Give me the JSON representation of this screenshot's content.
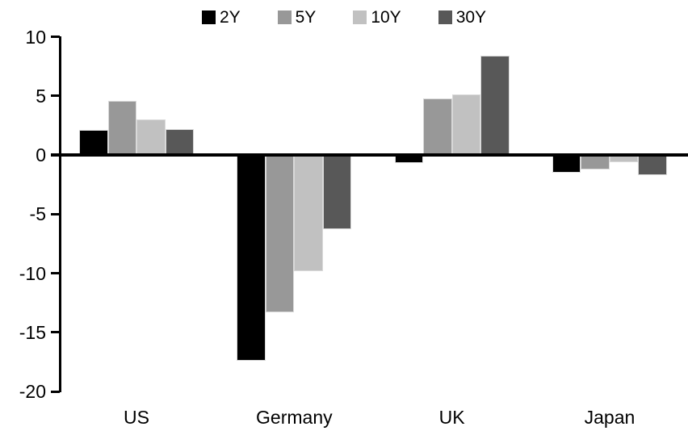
{
  "chart_data": {
    "type": "bar",
    "title": "",
    "xlabel": "",
    "ylabel": "",
    "categories": [
      "US",
      "Germany",
      "UK",
      "Japan"
    ],
    "series": [
      {
        "name": "2Y",
        "color": "#000000",
        "values": [
          2.1,
          -17.4,
          -0.7,
          -1.5
        ]
      },
      {
        "name": "5Y",
        "color": "#989898",
        "values": [
          4.6,
          -13.3,
          4.8,
          -1.2
        ]
      },
      {
        "name": "10Y",
        "color": "#c1c1c1",
        "values": [
          3.0,
          -9.8,
          5.1,
          -0.6
        ]
      },
      {
        "name": "30Y",
        "color": "#585858",
        "values": [
          2.2,
          -6.3,
          8.4,
          -1.7
        ]
      }
    ],
    "ylim": [
      -20,
      10
    ],
    "yticks": [
      10,
      5,
      0,
      -5,
      -10,
      -15,
      -20
    ],
    "legend_position": "top",
    "grid": false,
    "axis_color": "#000000",
    "background_color": "#ffffff"
  }
}
